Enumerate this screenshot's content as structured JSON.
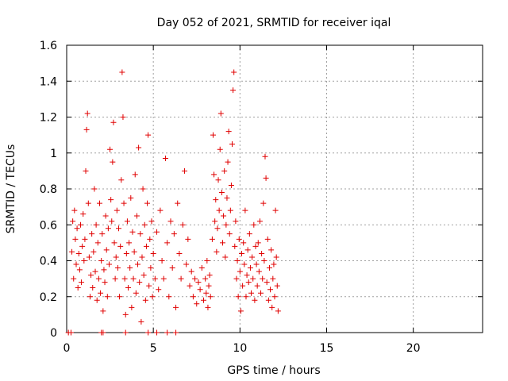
{
  "chart_data": {
    "type": "scatter",
    "title": "Day 052 of 2021, SRMTID for receiver iqal",
    "xlabel": "GPS time / hours",
    "ylabel": "SRMTID / TECUs",
    "xlim": [
      0,
      24
    ],
    "ylim": [
      0,
      1.6
    ],
    "xticks": [
      0,
      5,
      10,
      15,
      20
    ],
    "xtick_labels": [
      "0",
      "5",
      "10",
      "15",
      "20"
    ],
    "yticks": [
      0,
      0.2,
      0.4,
      0.6,
      0.8,
      1.0,
      1.2,
      1.4,
      1.6
    ],
    "ytick_labels": [
      "0",
      "0.2",
      "0.4",
      "0.6",
      "0.8",
      "1",
      "1.2",
      "1.4",
      "1.6"
    ],
    "grid": true,
    "marker": "+",
    "color": "#e00000",
    "series": [
      {
        "name": "SRMTID",
        "points": [
          [
            0.1,
            0.0
          ],
          [
            0.25,
            0.0
          ],
          [
            2.0,
            0.0
          ],
          [
            2.1,
            0.0
          ],
          [
            3.4,
            0.0
          ],
          [
            4.7,
            0.0
          ],
          [
            5.2,
            0.0
          ],
          [
            5.8,
            0.0
          ],
          [
            6.3,
            0.0
          ],
          [
            0.3,
            0.45
          ],
          [
            0.35,
            0.62
          ],
          [
            0.4,
            0.3
          ],
          [
            0.45,
            0.68
          ],
          [
            0.5,
            0.52
          ],
          [
            0.55,
            0.38
          ],
          [
            0.6,
            0.58
          ],
          [
            0.65,
            0.25
          ],
          [
            0.7,
            0.44
          ],
          [
            0.75,
            0.35
          ],
          [
            0.8,
            0.6
          ],
          [
            0.85,
            0.28
          ],
          [
            0.9,
            0.48
          ],
          [
            0.95,
            0.66
          ],
          [
            1.0,
            0.4
          ],
          [
            1.05,
            0.52
          ],
          [
            1.1,
            0.9
          ],
          [
            1.15,
            1.13
          ],
          [
            1.2,
            1.22
          ],
          [
            1.25,
            0.72
          ],
          [
            1.3,
            0.42
          ],
          [
            1.35,
            0.2
          ],
          [
            1.4,
            0.32
          ],
          [
            1.45,
            0.55
          ],
          [
            1.5,
            0.25
          ],
          [
            1.55,
            0.45
          ],
          [
            1.6,
            0.8
          ],
          [
            1.65,
            0.34
          ],
          [
            1.7,
            0.6
          ],
          [
            1.75,
            0.18
          ],
          [
            1.8,
            0.5
          ],
          [
            1.85,
            0.3
          ],
          [
            1.9,
            0.72
          ],
          [
            1.95,
            0.22
          ],
          [
            2.0,
            0.4
          ],
          [
            2.05,
            0.55
          ],
          [
            2.1,
            0.12
          ],
          [
            2.15,
            0.35
          ],
          [
            2.2,
            0.28
          ],
          [
            2.25,
            0.65
          ],
          [
            2.3,
            0.46
          ],
          [
            2.35,
            0.2
          ],
          [
            2.4,
            0.58
          ],
          [
            2.45,
            0.38
          ],
          [
            2.5,
            1.02
          ],
          [
            2.55,
            0.74
          ],
          [
            2.6,
            0.62
          ],
          [
            2.65,
            0.95
          ],
          [
            2.7,
            1.17
          ],
          [
            2.75,
            0.5
          ],
          [
            2.8,
            0.3
          ],
          [
            2.85,
            0.42
          ],
          [
            2.9,
            0.68
          ],
          [
            2.95,
            0.36
          ],
          [
            3.0,
            0.58
          ],
          [
            3.05,
            0.2
          ],
          [
            3.1,
            0.48
          ],
          [
            3.15,
            0.85
          ],
          [
            3.2,
            1.45
          ],
          [
            3.25,
            1.2
          ],
          [
            3.3,
            0.72
          ],
          [
            3.35,
            0.3
          ],
          [
            3.4,
            0.1
          ],
          [
            3.45,
            0.44
          ],
          [
            3.5,
            0.62
          ],
          [
            3.55,
            0.25
          ],
          [
            3.6,
            0.5
          ],
          [
            3.65,
            0.36
          ],
          [
            3.7,
            0.75
          ],
          [
            3.75,
            0.14
          ],
          [
            3.8,
            0.56
          ],
          [
            3.85,
            0.3
          ],
          [
            3.9,
            0.45
          ],
          [
            3.95,
            0.88
          ],
          [
            4.0,
            0.22
          ],
          [
            4.05,
            0.65
          ],
          [
            4.1,
            0.38
          ],
          [
            4.15,
            1.03
          ],
          [
            4.2,
            0.28
          ],
          [
            4.25,
            0.55
          ],
          [
            4.3,
            0.06
          ],
          [
            4.35,
            0.42
          ],
          [
            4.4,
            0.8
          ],
          [
            4.45,
            0.32
          ],
          [
            4.5,
            0.6
          ],
          [
            4.55,
            0.18
          ],
          [
            4.6,
            0.48
          ],
          [
            4.65,
            0.72
          ],
          [
            4.7,
            1.1
          ],
          [
            4.75,
            0.26
          ],
          [
            4.8,
            0.52
          ],
          [
            4.85,
            0.36
          ],
          [
            4.9,
            0.62
          ],
          [
            4.95,
            0.2
          ],
          [
            5.0,
            0.44
          ],
          [
            5.1,
            0.3
          ],
          [
            5.2,
            0.56
          ],
          [
            5.3,
            0.24
          ],
          [
            5.4,
            0.68
          ],
          [
            5.5,
            0.4
          ],
          [
            5.6,
            0.3
          ],
          [
            5.7,
            0.97
          ],
          [
            5.8,
            0.5
          ],
          [
            5.9,
            0.2
          ],
          [
            6.0,
            0.62
          ],
          [
            6.1,
            0.36
          ],
          [
            6.2,
            0.55
          ],
          [
            6.3,
            0.14
          ],
          [
            6.4,
            0.72
          ],
          [
            6.5,
            0.44
          ],
          [
            6.6,
            0.3
          ],
          [
            6.7,
            0.6
          ],
          [
            6.8,
            0.9
          ],
          [
            6.9,
            0.38
          ],
          [
            7.0,
            0.52
          ],
          [
            7.1,
            0.26
          ],
          [
            7.2,
            0.34
          ],
          [
            7.3,
            0.2
          ],
          [
            7.4,
            0.3
          ],
          [
            7.5,
            0.16
          ],
          [
            7.6,
            0.28
          ],
          [
            7.7,
            0.24
          ],
          [
            7.8,
            0.36
          ],
          [
            7.9,
            0.18
          ],
          [
            8.0,
            0.3
          ],
          [
            8.05,
            0.22
          ],
          [
            8.1,
            0.4
          ],
          [
            8.15,
            0.14
          ],
          [
            8.2,
            0.26
          ],
          [
            8.25,
            0.32
          ],
          [
            8.3,
            0.2
          ],
          [
            8.4,
            0.52
          ],
          [
            8.45,
            1.1
          ],
          [
            8.5,
            0.88
          ],
          [
            8.55,
            0.62
          ],
          [
            8.6,
            0.74
          ],
          [
            8.65,
            0.45
          ],
          [
            8.7,
            0.58
          ],
          [
            8.75,
            0.85
          ],
          [
            8.8,
            0.68
          ],
          [
            8.85,
            1.02
          ],
          [
            8.9,
            1.22
          ],
          [
            8.95,
            0.78
          ],
          [
            9.0,
            0.5
          ],
          [
            9.05,
            0.65
          ],
          [
            9.1,
            0.9
          ],
          [
            9.15,
            0.42
          ],
          [
            9.2,
            0.6
          ],
          [
            9.25,
            0.75
          ],
          [
            9.3,
            0.95
          ],
          [
            9.35,
            1.12
          ],
          [
            9.4,
            0.55
          ],
          [
            9.45,
            0.68
          ],
          [
            9.5,
            0.82
          ],
          [
            9.55,
            1.05
          ],
          [
            9.6,
            1.35
          ],
          [
            9.65,
            1.45
          ],
          [
            9.7,
            0.48
          ],
          [
            9.75,
            0.62
          ],
          [
            9.8,
            0.3
          ],
          [
            9.85,
            0.4
          ],
          [
            9.9,
            0.2
          ],
          [
            9.95,
            0.52
          ],
          [
            10.0,
            0.34
          ],
          [
            10.05,
            0.12
          ],
          [
            10.1,
            0.44
          ],
          [
            10.15,
            0.26
          ],
          [
            10.2,
            0.5
          ],
          [
            10.25,
            0.38
          ],
          [
            10.3,
            0.68
          ],
          [
            10.35,
            0.2
          ],
          [
            10.4,
            0.32
          ],
          [
            10.45,
            0.46
          ],
          [
            10.5,
            0.28
          ],
          [
            10.55,
            0.55
          ],
          [
            10.6,
            0.36
          ],
          [
            10.65,
            0.22
          ],
          [
            10.7,
            0.42
          ],
          [
            10.75,
            0.3
          ],
          [
            10.8,
            0.6
          ],
          [
            10.85,
            0.18
          ],
          [
            10.9,
            0.48
          ],
          [
            10.95,
            0.38
          ],
          [
            11.0,
            0.26
          ],
          [
            11.05,
            0.5
          ],
          [
            11.1,
            0.34
          ],
          [
            11.15,
            0.62
          ],
          [
            11.2,
            0.22
          ],
          [
            11.25,
            0.44
          ],
          [
            11.3,
            0.3
          ],
          [
            11.35,
            0.72
          ],
          [
            11.4,
            0.4
          ],
          [
            11.45,
            0.98
          ],
          [
            11.5,
            0.86
          ],
          [
            11.55,
            0.28
          ],
          [
            11.6,
            0.52
          ],
          [
            11.65,
            0.18
          ],
          [
            11.7,
            0.36
          ],
          [
            11.75,
            0.24
          ],
          [
            11.8,
            0.46
          ],
          [
            11.85,
            0.14
          ],
          [
            11.9,
            0.3
          ],
          [
            11.95,
            0.38
          ],
          [
            12.0,
            0.2
          ],
          [
            12.05,
            0.68
          ],
          [
            12.1,
            0.42
          ],
          [
            12.15,
            0.26
          ],
          [
            12.2,
            0.12
          ]
        ]
      }
    ]
  }
}
